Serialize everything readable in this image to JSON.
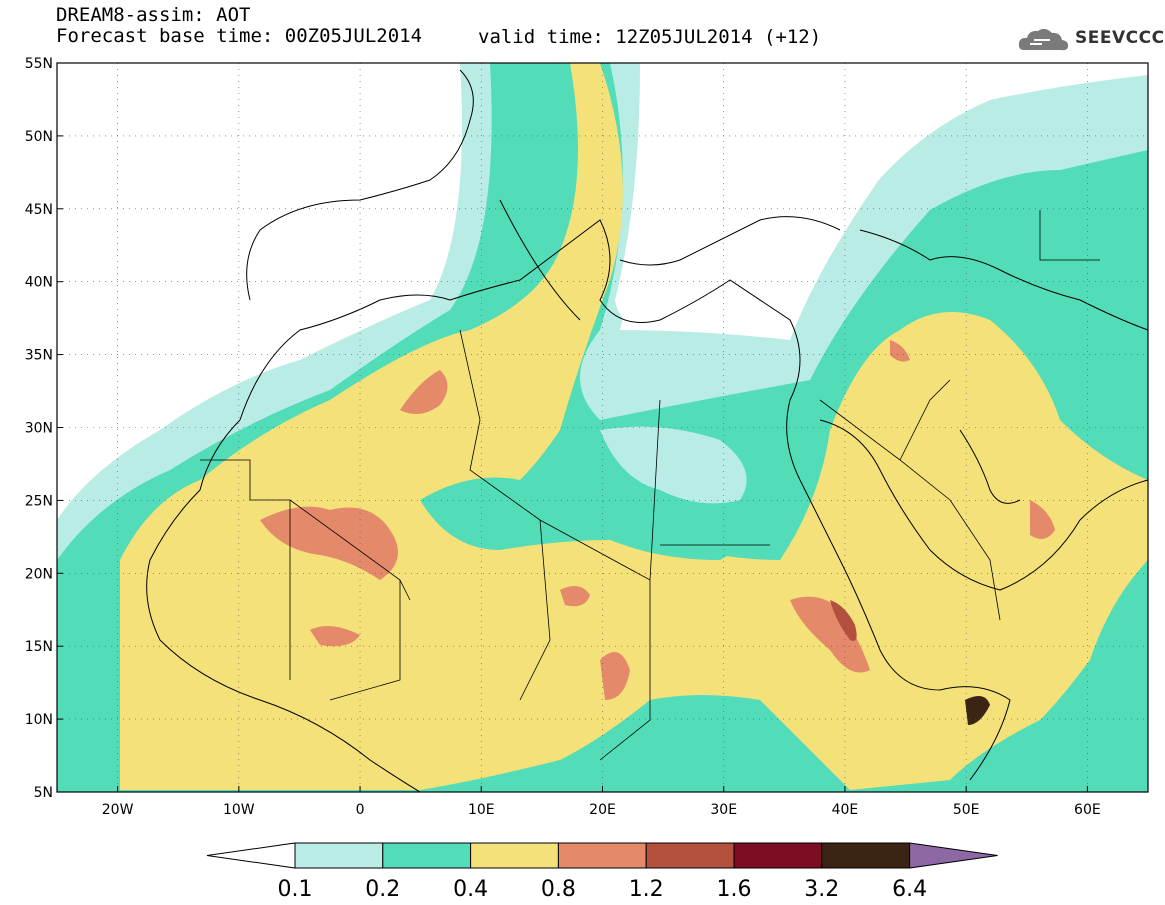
{
  "title": {
    "line1": "DREAM8-assim: AOT",
    "line2": "Forecast base time: 00Z05JUL2014",
    "valid": "valid time: 12Z05JUL2014 (+12)"
  },
  "logo": {
    "icon": "cloud-icon",
    "text": "SEEVCCC"
  },
  "axes": {
    "lon_labels": [
      "20W",
      "10W",
      "0",
      "10E",
      "20E",
      "30E",
      "40E",
      "50E",
      "60E"
    ],
    "lon_values": [
      -20,
      -10,
      0,
      10,
      20,
      30,
      40,
      50,
      60
    ],
    "lat_labels": [
      "55N",
      "50N",
      "45N",
      "40N",
      "35N",
      "30N",
      "25N",
      "20N",
      "15N",
      "10N",
      "5N"
    ],
    "lat_values": [
      55,
      50,
      45,
      40,
      35,
      30,
      25,
      20,
      15,
      10,
      5
    ],
    "lon_range": [
      -25,
      65
    ],
    "lat_range": [
      5,
      55
    ]
  },
  "colorbar": {
    "labels": [
      "0.1",
      "0.2",
      "0.4",
      "0.8",
      "1.2",
      "1.6",
      "3.2",
      "6.4"
    ],
    "colors": [
      "#ffffff",
      "#b9ece4",
      "#52dcb8",
      "#f5e17a",
      "#e48a6a",
      "#b4503e",
      "#7d0d22",
      "#3c2414",
      "#8e68a4"
    ]
  },
  "field_colors": {
    "light": "#b9ece4",
    "teal": "#52dcb8",
    "yellow": "#f5e17a",
    "orange": "#e48a6a",
    "brown": "#b4503e",
    "dark": "#3c2414"
  }
}
